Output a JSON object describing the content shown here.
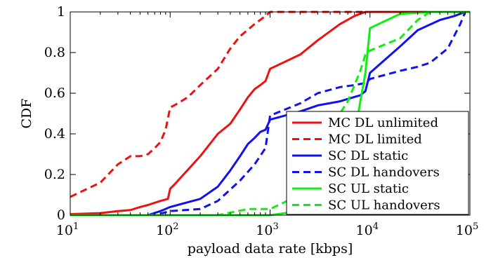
{
  "chart_data": {
    "type": "line",
    "xlabel": "payload data rate [kbps]",
    "ylabel": "CDF",
    "xscale": "log",
    "xlim": [
      10,
      100000
    ],
    "ylim": [
      0,
      1
    ],
    "x_ticks": [
      {
        "value": 10,
        "base": "10",
        "exp": "1"
      },
      {
        "value": 100,
        "base": "10",
        "exp": "2"
      },
      {
        "value": 1000,
        "base": "10",
        "exp": "3"
      },
      {
        "value": 10000,
        "base": "10",
        "exp": "4"
      },
      {
        "value": 100000,
        "base": "10",
        "exp": "5"
      }
    ],
    "y_ticks": [
      {
        "value": 0,
        "label": "0"
      },
      {
        "value": 0.2,
        "label": "0.2"
      },
      {
        "value": 0.4,
        "label": "0.4"
      },
      {
        "value": 0.6,
        "label": "0.6"
      },
      {
        "value": 0.8,
        "label": "0.8"
      },
      {
        "value": 1,
        "label": "1"
      }
    ],
    "grid": false,
    "legend_position": "lower-right",
    "series": [
      {
        "name": "MC DL unlimited",
        "color": "#ee1111",
        "dash": "solid",
        "points": [
          [
            10,
            0.005
          ],
          [
            20,
            0.01
          ],
          [
            30,
            0.02
          ],
          [
            40,
            0.025
          ],
          [
            50,
            0.04
          ],
          [
            60,
            0.05
          ],
          [
            80,
            0.07
          ],
          [
            95,
            0.08
          ],
          [
            100,
            0.13
          ],
          [
            110,
            0.15
          ],
          [
            200,
            0.29
          ],
          [
            300,
            0.4
          ],
          [
            400,
            0.45
          ],
          [
            500,
            0.52
          ],
          [
            600,
            0.58
          ],
          [
            700,
            0.62
          ],
          [
            800,
            0.64
          ],
          [
            900,
            0.66
          ],
          [
            1000,
            0.72
          ],
          [
            2000,
            0.79
          ],
          [
            3000,
            0.86
          ],
          [
            5000,
            0.94
          ],
          [
            7000,
            0.98
          ],
          [
            9000,
            1.0
          ],
          [
            100000,
            1.0
          ]
        ]
      },
      {
        "name": "MC DL limited",
        "color": "#ee1111",
        "dash": "dashed",
        "points": [
          [
            10,
            0.09
          ],
          [
            20,
            0.16
          ],
          [
            30,
            0.25
          ],
          [
            40,
            0.29
          ],
          [
            50,
            0.29
          ],
          [
            60,
            0.3
          ],
          [
            70,
            0.33
          ],
          [
            80,
            0.36
          ],
          [
            90,
            0.42
          ],
          [
            100,
            0.53
          ],
          [
            110,
            0.54
          ],
          [
            150,
            0.58
          ],
          [
            200,
            0.64
          ],
          [
            300,
            0.72
          ],
          [
            400,
            0.82
          ],
          [
            500,
            0.88
          ],
          [
            700,
            0.94
          ],
          [
            900,
            0.98
          ],
          [
            1000,
            1.0
          ],
          [
            100000,
            1.0
          ]
        ]
      },
      {
        "name": "SC DL static",
        "color": "#1111ee",
        "dash": "solid",
        "points": [
          [
            10,
            0.0
          ],
          [
            60,
            0.0
          ],
          [
            80,
            0.02
          ],
          [
            100,
            0.04
          ],
          [
            200,
            0.08
          ],
          [
            300,
            0.14
          ],
          [
            400,
            0.22
          ],
          [
            500,
            0.29
          ],
          [
            600,
            0.35
          ],
          [
            700,
            0.38
          ],
          [
            800,
            0.41
          ],
          [
            900,
            0.42
          ],
          [
            1000,
            0.47
          ],
          [
            2000,
            0.51
          ],
          [
            3000,
            0.54
          ],
          [
            5000,
            0.56
          ],
          [
            8000,
            0.59
          ],
          [
            9000,
            0.61
          ],
          [
            10000,
            0.7
          ],
          [
            20000,
            0.83
          ],
          [
            30000,
            0.91
          ],
          [
            50000,
            0.96
          ],
          [
            70000,
            0.98
          ],
          [
            90000,
            1.0
          ],
          [
            100000,
            1.0
          ]
        ]
      },
      {
        "name": "SC DL handovers",
        "color": "#1111ee",
        "dash": "dashed",
        "points": [
          [
            10,
            0.0
          ],
          [
            70,
            0.0
          ],
          [
            100,
            0.02
          ],
          [
            200,
            0.03
          ],
          [
            300,
            0.07
          ],
          [
            500,
            0.17
          ],
          [
            700,
            0.25
          ],
          [
            900,
            0.33
          ],
          [
            1000,
            0.49
          ],
          [
            2000,
            0.55
          ],
          [
            3000,
            0.6
          ],
          [
            5000,
            0.63
          ],
          [
            7000,
            0.64
          ],
          [
            9000,
            0.65
          ],
          [
            10000,
            0.67
          ],
          [
            20000,
            0.71
          ],
          [
            30000,
            0.73
          ],
          [
            40000,
            0.75
          ],
          [
            60000,
            0.82
          ],
          [
            80000,
            0.94
          ],
          [
            90000,
            1.0
          ],
          [
            100000,
            1.0
          ]
        ]
      },
      {
        "name": "SC UL static",
        "color": "#11ee11",
        "dash": "solid",
        "points": [
          [
            10,
            0.0
          ],
          [
            1000,
            0.0
          ],
          [
            2000,
            0.02
          ],
          [
            3000,
            0.04
          ],
          [
            5000,
            0.08
          ],
          [
            6000,
            0.18
          ],
          [
            8000,
            0.56
          ],
          [
            9000,
            0.7
          ],
          [
            10000,
            0.92
          ],
          [
            11000,
            0.93
          ],
          [
            20000,
            0.99
          ],
          [
            40000,
            1.0
          ],
          [
            100000,
            1.0
          ]
        ]
      },
      {
        "name": "SC UL handovers",
        "color": "#11ee11",
        "dash": "dashed",
        "points": [
          [
            10,
            0.0
          ],
          [
            300,
            0.0
          ],
          [
            600,
            0.03
          ],
          [
            1000,
            0.03
          ],
          [
            2000,
            0.1
          ],
          [
            3000,
            0.28
          ],
          [
            4000,
            0.4
          ],
          [
            5000,
            0.5
          ],
          [
            6000,
            0.56
          ],
          [
            8000,
            0.71
          ],
          [
            9000,
            0.79
          ],
          [
            10000,
            0.81
          ],
          [
            20000,
            0.87
          ],
          [
            30000,
            0.96
          ],
          [
            40000,
            1.0
          ],
          [
            100000,
            1.0
          ]
        ]
      }
    ]
  }
}
